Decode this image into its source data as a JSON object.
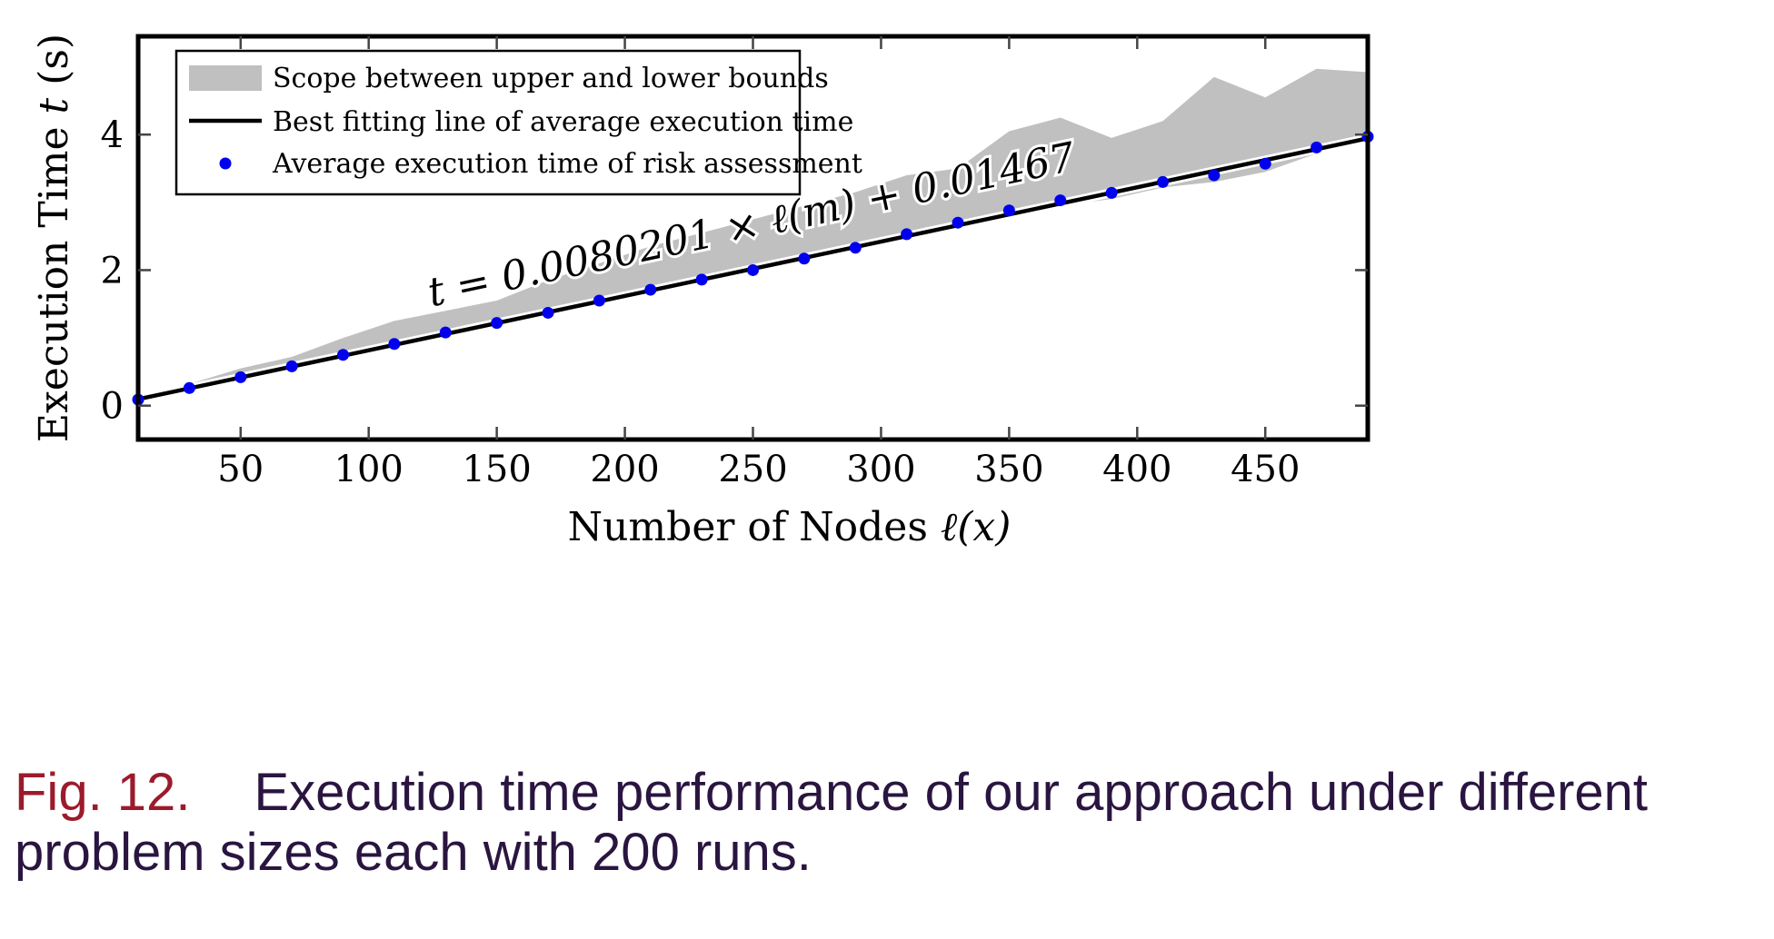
{
  "chart_data": {
    "type": "line",
    "xlabel_text": "Number of Nodes ",
    "xlabel_math": "ℓ(x)",
    "ylabel_text": "Execution Time ",
    "ylabel_math": "t",
    "ylabel_unit": " (s)",
    "xlim": [
      10,
      490
    ],
    "ylim": [
      -0.5,
      5.45
    ],
    "xticks": [
      50,
      100,
      150,
      200,
      250,
      300,
      350,
      400,
      450
    ],
    "yticks": [
      0,
      2,
      4
    ],
    "grid": false,
    "legend_position": "top-left",
    "legend": [
      {
        "label": "Scope between upper and lower bounds",
        "kind": "area",
        "color": "#c0c0c0"
      },
      {
        "label": "Best fitting line of average execution time",
        "kind": "line",
        "color": "#000000"
      },
      {
        "label": "Average execution time of risk assessment",
        "kind": "marker",
        "color": "#0000ee"
      }
    ],
    "annotation": "t = 0.0080201 × ℓ(m) + 0.01467",
    "fit": {
      "slope": 0.0080201,
      "intercept": 0.01467
    },
    "series": [
      {
        "name": "Average execution time of risk assessment",
        "x": [
          10,
          30,
          50,
          70,
          90,
          110,
          130,
          150,
          170,
          190,
          210,
          230,
          250,
          270,
          290,
          310,
          330,
          350,
          370,
          390,
          410,
          430,
          450,
          470,
          490
        ],
        "y": [
          0.09,
          0.26,
          0.42,
          0.58,
          0.75,
          0.91,
          1.08,
          1.22,
          1.37,
          1.55,
          1.71,
          1.86,
          2.0,
          2.17,
          2.33,
          2.53,
          2.7,
          2.88,
          3.03,
          3.14,
          3.3,
          3.4,
          3.57,
          3.81,
          3.97
        ]
      },
      {
        "name": "Scope between upper and lower bounds",
        "x": [
          10,
          30,
          50,
          70,
          90,
          110,
          130,
          150,
          170,
          190,
          210,
          230,
          250,
          270,
          290,
          310,
          330,
          350,
          370,
          390,
          410,
          430,
          450,
          470,
          490
        ],
        "upper": [
          0.12,
          0.32,
          0.55,
          0.72,
          1.0,
          1.25,
          1.4,
          1.55,
          1.85,
          2.1,
          2.35,
          2.55,
          2.75,
          2.95,
          3.15,
          3.4,
          3.5,
          4.05,
          4.25,
          3.95,
          4.2,
          4.85,
          4.55,
          4.97,
          4.92
        ],
        "lower": [
          0.07,
          0.24,
          0.39,
          0.56,
          0.73,
          0.89,
          1.06,
          1.2,
          1.35,
          1.53,
          1.69,
          1.84,
          1.98,
          2.15,
          2.31,
          2.51,
          2.68,
          2.86,
          2.95,
          3.05,
          3.22,
          3.3,
          3.45,
          3.72,
          3.95
        ]
      }
    ]
  },
  "caption": {
    "label": "Fig. 12.",
    "text": "Execution time performance of our approach under different problem sizes each with 200 runs."
  }
}
